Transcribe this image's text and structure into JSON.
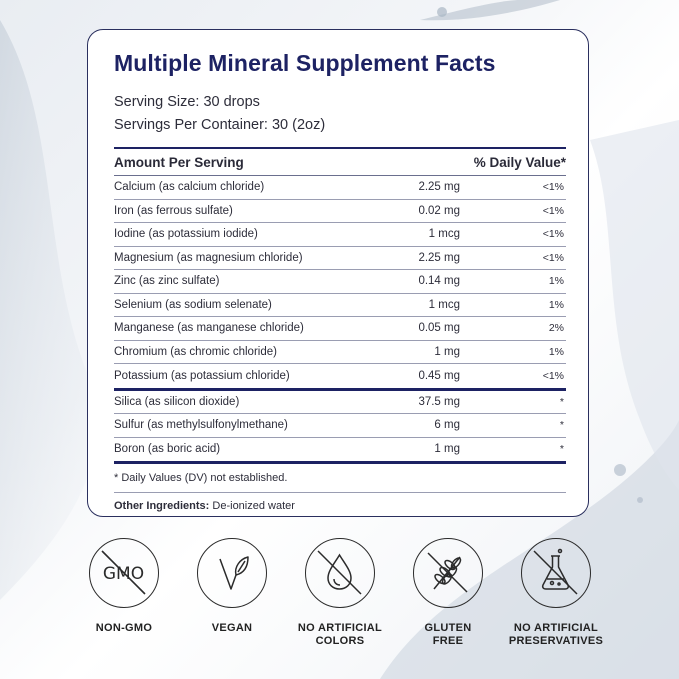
{
  "title": "Multiple Mineral Supplement Facts",
  "serving_size": "Serving Size: 30 drops",
  "servings_per_container": "Servings Per Container: 30 (2oz)",
  "header": {
    "amount": "Amount Per Serving",
    "dv": "% Daily Value*"
  },
  "nutrients_a": [
    {
      "name": "Calcium (as calcium chloride)",
      "amount": "2.25 mg",
      "dv": "<1%"
    },
    {
      "name": "Iron (as ferrous sulfate)",
      "amount": "0.02 mg",
      "dv": "<1%"
    },
    {
      "name": "Iodine (as potassium iodide)",
      "amount": "1 mcg",
      "dv": "<1%"
    },
    {
      "name": "Magnesium (as magnesium chloride)",
      "amount": "2.25 mg",
      "dv": "<1%"
    },
    {
      "name": "Zinc (as zinc sulfate)",
      "amount": "0.14 mg",
      "dv": "1%"
    },
    {
      "name": "Selenium (as sodium selenate)",
      "amount": "1 mcg",
      "dv": "1%"
    },
    {
      "name": "Manganese (as manganese chloride)",
      "amount": "0.05 mg",
      "dv": "2%"
    },
    {
      "name": "Chromium (as chromic chloride)",
      "amount": "1 mg",
      "dv": "1%"
    },
    {
      "name": "Potassium (as potassium chloride)",
      "amount": "0.45 mg",
      "dv": "<1%"
    }
  ],
  "nutrients_b": [
    {
      "name": "Silica (as silicon dioxide)",
      "amount": "37.5 mg",
      "dv": "*"
    },
    {
      "name": "Sulfur (as methylsulfonylmethane)",
      "amount": "6 mg",
      "dv": "*"
    },
    {
      "name": "Boron (as boric acid)",
      "amount": "1 mg",
      "dv": "*"
    }
  ],
  "footnote": "* Daily Values (DV) not established.",
  "other_label": "Other Ingredients:",
  "other_value": " De-ionized water",
  "badges": {
    "gmo_text": "GMO",
    "non_gmo": "NON-GMO",
    "vegan": "VEGAN",
    "no_colors": "NO ARTIFICIAL\nCOLORS",
    "gluten_free": "GLUTEN\nFREE",
    "no_preservatives": "NO ARTIFICIAL\nPRESERVATIVES"
  },
  "colors": {
    "accent": "#1d2263",
    "icon": "#2b2b2b"
  }
}
